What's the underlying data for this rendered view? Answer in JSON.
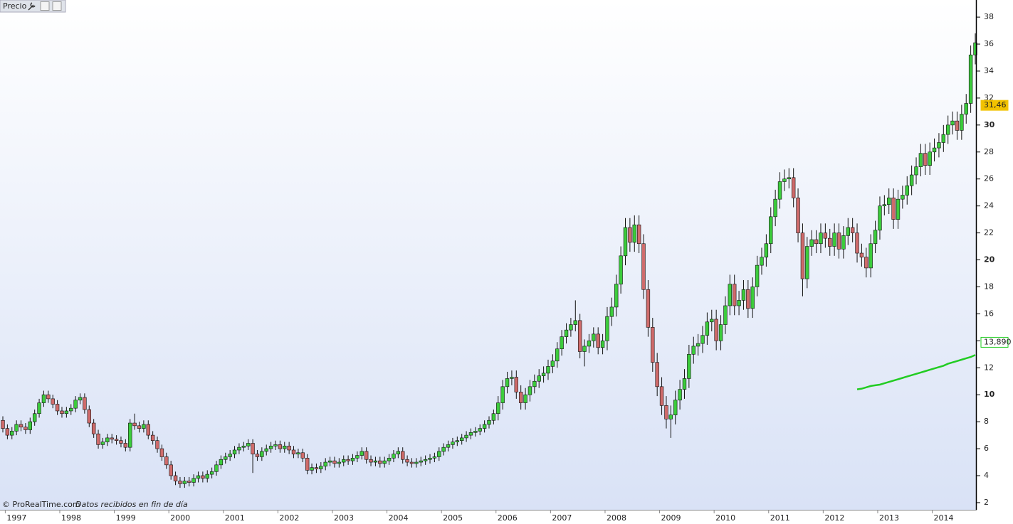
{
  "chart_data": {
    "type": "candlestick",
    "title": "Precio",
    "source": "© ProRealTime.com",
    "note": "Datos recibidos en fin de día",
    "up_color": "#3ccc3c",
    "down_color": "#cf6b6b",
    "ylim": [
      1.47,
      39.27
    ],
    "yticks": [
      2,
      4,
      6,
      8,
      10,
      12,
      14,
      16,
      18,
      20,
      22,
      24,
      26,
      28,
      30,
      32,
      34,
      36,
      38
    ],
    "categories": [
      null,
      "1997",
      null,
      null,
      null,
      null,
      null,
      null,
      null,
      null,
      null,
      null,
      null,
      "1998",
      null,
      null,
      null,
      null,
      null,
      null,
      null,
      null,
      null,
      null,
      null,
      "1999",
      null,
      null,
      null,
      null,
      null,
      null,
      null,
      null,
      null,
      null,
      null,
      "2000",
      null,
      null,
      null,
      null,
      null,
      null,
      null,
      null,
      null,
      null,
      null,
      "2001",
      null,
      null,
      null,
      null,
      null,
      null,
      null,
      null,
      null,
      null,
      null,
      "2002",
      null,
      null,
      null,
      null,
      null,
      null,
      null,
      null,
      null,
      null,
      null,
      "2003",
      null,
      null,
      null,
      null,
      null,
      null,
      null,
      null,
      null,
      null,
      null,
      "2004",
      null,
      null,
      null,
      null,
      null,
      null,
      null,
      null,
      null,
      null,
      null,
      "2005",
      null,
      null,
      null,
      null,
      null,
      null,
      null,
      null,
      null,
      null,
      null,
      "2006",
      null,
      null,
      null,
      null,
      null,
      null,
      null,
      null,
      null,
      null,
      null,
      "2007",
      null,
      null,
      null,
      null,
      null,
      null,
      null,
      null,
      null,
      null,
      null,
      "2008",
      null,
      null,
      null,
      null,
      null,
      null,
      null,
      null,
      null,
      null,
      null,
      "2009",
      null,
      null,
      null,
      null,
      null,
      null,
      null,
      null,
      null,
      null,
      null,
      "2010",
      null,
      null,
      null,
      null,
      null,
      null,
      null,
      null,
      null,
      null,
      null,
      "2011",
      null,
      null,
      null,
      null,
      null,
      null,
      null,
      null,
      null,
      null,
      null,
      "2012",
      null,
      null,
      null,
      null,
      null,
      null,
      null,
      null,
      null,
      null,
      null,
      "2013",
      null,
      null,
      null,
      null,
      null,
      null,
      null,
      null,
      null,
      null,
      null,
      "2014",
      null,
      null,
      null,
      null,
      null,
      null,
      null,
      null,
      null
    ],
    "open": [
      8.1,
      7.5,
      7.0,
      7.3,
      7.8,
      7.6,
      7.4,
      8.0,
      8.6,
      9.4,
      10.0,
      9.7,
      9.3,
      8.8,
      8.6,
      8.8,
      9.0,
      9.6,
      9.8,
      8.9,
      7.9,
      7.1,
      6.3,
      6.5,
      6.8,
      6.7,
      6.6,
      6.4,
      6.1,
      7.9,
      7.7,
      7.5,
      7.8,
      7.0,
      6.6,
      6.0,
      5.4,
      4.8,
      4.0,
      3.6,
      3.4,
      3.6,
      3.5,
      3.8,
      4.0,
      3.8,
      4.1,
      4.3,
      4.8,
      5.2,
      5.4,
      5.6,
      5.9,
      6.1,
      6.2,
      6.4,
      5.6,
      5.4,
      5.8,
      6.0,
      6.2,
      6.3,
      6.0,
      6.2,
      5.9,
      5.6,
      5.7,
      5.3,
      4.4,
      4.6,
      4.5,
      4.7,
      5.0,
      5.1,
      4.9,
      5.0,
      5.2,
      5.1,
      5.3,
      5.5,
      5.8,
      5.2,
      5.0,
      5.1,
      4.9,
      5.1,
      5.3,
      5.6,
      5.8,
      5.2,
      5.0,
      4.9,
      5.0,
      5.1,
      5.2,
      5.3,
      5.4,
      5.8,
      6.1,
      6.3,
      6.5,
      6.6,
      6.8,
      7.0,
      7.2,
      7.3,
      7.5,
      7.8,
      8.1,
      8.6,
      9.4,
      10.6,
      11.2,
      11.3,
      10.2,
      9.4,
      10.0,
      10.6,
      11.0,
      11.4,
      11.6,
      12.1,
      12.5,
      13.4,
      14.3,
      14.8,
      15.2,
      15.5,
      13.2,
      13.6,
      14.0,
      14.5,
      13.5,
      14.0,
      15.8,
      16.5,
      18.2,
      20.3,
      22.4,
      21.3,
      22.6,
      21.2,
      17.8,
      15.0,
      12.4,
      10.6,
      9.2,
      8.2,
      8.5,
      9.6,
      10.4,
      11.2,
      13.0,
      13.6,
      13.8,
      14.4,
      15.4,
      15.6,
      14.0,
      15.2,
      16.6,
      18.2,
      16.6,
      17.0,
      17.8,
      16.4,
      18.0,
      19.6,
      20.2,
      21.2,
      23.2,
      24.5,
      25.8,
      26.0,
      26.1,
      24.6,
      22.0,
      18.6,
      21.0,
      21.5,
      21.2,
      22.0,
      21.6,
      21.0,
      22.0,
      20.8,
      21.8,
      22.4,
      22.0,
      20.5,
      20.2,
      19.4,
      21.2,
      22.2,
      24.0,
      24.1,
      24.6,
      23.0,
      24.5,
      24.8,
      25.5,
      26.3,
      26.9,
      27.9,
      27.0,
      28.0,
      28.3,
      28.7,
      29.3,
      30.0,
      30.3,
      29.6,
      30.8,
      31.6,
      35.2
    ],
    "high": [
      8.4,
      7.8,
      7.6,
      8.1,
      8.1,
      7.9,
      8.3,
      8.9,
      9.7,
      10.3,
      10.3,
      10.0,
      9.6,
      9.1,
      9.1,
      9.3,
      9.9,
      10.1,
      10.1,
      9.2,
      8.2,
      7.4,
      6.8,
      7.1,
      7.1,
      7.0,
      6.9,
      6.7,
      8.2,
      8.6,
      8.0,
      8.1,
      8.1,
      7.3,
      6.9,
      6.3,
      5.7,
      5.1,
      4.3,
      3.9,
      3.9,
      3.9,
      4.1,
      4.3,
      4.3,
      4.4,
      4.6,
      5.1,
      5.5,
      5.7,
      5.9,
      6.2,
      6.4,
      6.5,
      6.7,
      6.7,
      5.9,
      6.1,
      6.3,
      6.5,
      6.6,
      6.6,
      6.5,
      6.5,
      6.2,
      6.0,
      6.0,
      5.6,
      4.9,
      4.9,
      5.0,
      5.3,
      5.4,
      5.4,
      5.3,
      5.5,
      5.5,
      5.6,
      5.8,
      6.1,
      6.1,
      5.5,
      5.4,
      5.4,
      5.4,
      5.6,
      5.9,
      6.1,
      6.1,
      5.5,
      5.3,
      5.3,
      5.4,
      5.5,
      5.6,
      5.7,
      6.1,
      6.4,
      6.6,
      6.8,
      6.9,
      7.1,
      7.3,
      7.5,
      7.6,
      7.8,
      8.1,
      8.4,
      8.9,
      9.9,
      11.1,
      11.7,
      11.8,
      11.8,
      10.7,
      10.5,
      11.1,
      11.5,
      11.9,
      12.1,
      12.6,
      13.0,
      13.9,
      14.8,
      15.3,
      15.7,
      17.0,
      16.0,
      14.1,
      14.5,
      15.0,
      15.0,
      14.5,
      16.5,
      17.2,
      18.9,
      21.0,
      23.1,
      23.1,
      23.3,
      23.3,
      21.9,
      18.5,
      15.7,
      13.1,
      11.3,
      9.9,
      9.2,
      10.3,
      11.1,
      11.9,
      13.7,
      14.3,
      14.5,
      15.1,
      16.1,
      16.3,
      16.3,
      15.9,
      17.3,
      18.9,
      18.9,
      17.7,
      18.5,
      18.5,
      18.7,
      20.3,
      20.9,
      21.9,
      23.9,
      25.2,
      26.5,
      26.7,
      26.8,
      26.8,
      25.3,
      22.7,
      21.7,
      22.2,
      22.2,
      22.7,
      22.7,
      22.3,
      22.7,
      22.7,
      22.5,
      23.1,
      23.1,
      22.7,
      21.2,
      20.9,
      21.9,
      22.9,
      24.7,
      24.8,
      25.3,
      25.3,
      25.2,
      25.5,
      26.2,
      27.0,
      27.6,
      28.6,
      28.6,
      28.7,
      29.0,
      29.4,
      30.0,
      30.7,
      31.0,
      31.0,
      31.5,
      32.3,
      35.9,
      36.8
    ],
    "low": [
      7.2,
      6.7,
      6.7,
      7.0,
      7.3,
      7.1,
      7.1,
      7.7,
      8.3,
      9.1,
      9.4,
      9.0,
      8.5,
      8.3,
      8.3,
      8.5,
      8.7,
      9.3,
      8.6,
      7.6,
      6.8,
      6.0,
      6.0,
      6.2,
      6.4,
      6.3,
      6.1,
      5.8,
      5.8,
      7.4,
      7.2,
      7.2,
      6.7,
      6.3,
      5.7,
      5.1,
      4.5,
      3.7,
      3.3,
      3.1,
      3.1,
      3.2,
      3.2,
      3.5,
      3.5,
      3.5,
      3.8,
      4.0,
      4.5,
      4.9,
      5.1,
      5.3,
      5.6,
      5.8,
      5.9,
      4.2,
      5.1,
      5.1,
      5.5,
      5.7,
      5.9,
      5.7,
      5.7,
      5.6,
      5.3,
      5.3,
      5.0,
      4.1,
      4.1,
      4.2,
      4.2,
      4.4,
      4.7,
      4.6,
      4.6,
      4.7,
      4.8,
      4.8,
      5.0,
      5.2,
      4.9,
      4.7,
      4.7,
      4.6,
      4.6,
      4.8,
      5.0,
      5.3,
      4.9,
      4.7,
      4.6,
      4.6,
      4.7,
      4.8,
      4.9,
      5.0,
      5.1,
      5.5,
      5.8,
      6.0,
      6.2,
      6.3,
      6.5,
      6.7,
      6.9,
      7.0,
      7.2,
      7.5,
      7.8,
      8.1,
      8.9,
      10.1,
      10.7,
      9.7,
      8.9,
      8.9,
      9.5,
      10.1,
      10.5,
      10.9,
      11.1,
      11.6,
      12.0,
      12.9,
      13.8,
      14.3,
      14.7,
      12.7,
      12.1,
      13.1,
      13.5,
      13.0,
      13.0,
      13.3,
      15.1,
      15.8,
      17.5,
      19.6,
      20.6,
      20.6,
      20.5,
      17.1,
      14.3,
      11.7,
      9.9,
      8.5,
      7.5,
      6.8,
      7.8,
      8.9,
      9.7,
      10.5,
      12.3,
      12.9,
      13.1,
      13.7,
      14.7,
      13.3,
      13.3,
      14.5,
      15.9,
      15.9,
      15.9,
      16.3,
      15.7,
      15.7,
      17.3,
      18.9,
      19.5,
      20.5,
      22.5,
      23.8,
      25.1,
      25.3,
      23.9,
      21.3,
      17.3,
      17.9,
      20.3,
      20.5,
      20.5,
      20.9,
      20.3,
      20.3,
      20.1,
      20.1,
      21.1,
      21.3,
      19.8,
      19.5,
      18.7,
      18.7,
      20.5,
      21.5,
      23.3,
      23.4,
      22.3,
      22.3,
      23.8,
      24.1,
      24.8,
      25.6,
      26.2,
      26.3,
      26.3,
      27.3,
      27.6,
      28.0,
      28.6,
      29.3,
      28.9,
      28.9,
      30.1,
      30.9,
      34.5
    ],
    "close": [
      7.5,
      7.0,
      7.3,
      7.8,
      7.6,
      7.4,
      8.0,
      8.6,
      9.4,
      10.0,
      9.7,
      9.3,
      8.8,
      8.6,
      8.8,
      9.0,
      9.6,
      9.8,
      8.9,
      7.9,
      7.1,
      6.3,
      6.5,
      6.8,
      6.7,
      6.6,
      6.4,
      6.1,
      7.9,
      7.7,
      7.5,
      7.8,
      7.0,
      6.6,
      6.0,
      5.4,
      4.8,
      4.0,
      3.6,
      3.4,
      3.6,
      3.5,
      3.8,
      4.0,
      3.8,
      4.1,
      4.3,
      4.8,
      5.2,
      5.4,
      5.6,
      5.9,
      6.1,
      6.2,
      6.4,
      5.6,
      5.4,
      5.8,
      6.0,
      6.2,
      6.3,
      6.0,
      6.2,
      5.9,
      5.6,
      5.7,
      5.3,
      4.4,
      4.6,
      4.5,
      4.7,
      5.0,
      5.1,
      4.9,
      5.0,
      5.2,
      5.1,
      5.3,
      5.5,
      5.8,
      5.2,
      5.0,
      5.1,
      4.9,
      5.1,
      5.3,
      5.6,
      5.8,
      5.2,
      5.0,
      4.9,
      5.0,
      5.1,
      5.2,
      5.3,
      5.4,
      5.8,
      6.1,
      6.3,
      6.5,
      6.6,
      6.8,
      7.0,
      7.2,
      7.3,
      7.5,
      7.8,
      8.1,
      8.6,
      9.4,
      10.6,
      11.2,
      11.3,
      10.2,
      9.4,
      10.0,
      10.6,
      11.0,
      11.4,
      11.6,
      12.1,
      12.5,
      13.4,
      14.3,
      14.8,
      15.2,
      15.5,
      13.2,
      13.6,
      14.0,
      14.5,
      13.5,
      14.0,
      15.8,
      16.5,
      18.2,
      20.3,
      22.4,
      21.3,
      22.6,
      21.2,
      17.8,
      15.0,
      12.4,
      10.6,
      9.2,
      8.2,
      8.5,
      9.6,
      10.4,
      11.2,
      13.0,
      13.6,
      13.8,
      14.4,
      15.4,
      15.6,
      14.0,
      15.2,
      16.6,
      18.2,
      16.6,
      17.0,
      17.8,
      16.4,
      18.0,
      19.6,
      20.2,
      21.2,
      23.2,
      24.5,
      25.8,
      26.0,
      26.1,
      24.6,
      22.0,
      18.6,
      21.0,
      21.5,
      21.2,
      22.0,
      21.6,
      21.0,
      22.0,
      20.8,
      21.8,
      22.4,
      22.0,
      20.5,
      20.2,
      19.4,
      21.2,
      22.2,
      24.0,
      24.1,
      24.6,
      23.0,
      24.5,
      24.8,
      25.5,
      26.3,
      26.9,
      27.9,
      27.0,
      28.0,
      28.3,
      28.7,
      29.3,
      30.0,
      30.3,
      29.6,
      30.8,
      31.6,
      35.2,
      36.1
    ],
    "line": {
      "color": "#22cc22",
      "values": [
        null,
        null,
        null,
        null,
        null,
        null,
        null,
        null,
        null,
        null,
        null,
        null,
        null,
        null,
        null,
        null,
        null,
        null,
        null,
        null,
        null,
        null,
        null,
        null,
        null,
        null,
        null,
        null,
        null,
        null,
        null,
        null,
        null,
        null,
        null,
        null,
        null,
        null,
        null,
        null,
        null,
        null,
        null,
        null,
        null,
        null,
        null,
        null,
        null,
        null,
        null,
        null,
        null,
        null,
        null,
        null,
        null,
        null,
        null,
        null,
        null,
        null,
        null,
        null,
        null,
        null,
        null,
        null,
        null,
        null,
        null,
        null,
        null,
        null,
        null,
        null,
        null,
        null,
        null,
        null,
        null,
        null,
        null,
        null,
        null,
        null,
        null,
        null,
        null,
        null,
        null,
        null,
        null,
        null,
        null,
        null,
        null,
        null,
        null,
        null,
        null,
        null,
        null,
        null,
        null,
        null,
        null,
        null,
        null,
        null,
        null,
        null,
        null,
        null,
        null,
        null,
        null,
        null,
        null,
        null,
        null,
        null,
        null,
        null,
        null,
        null,
        null,
        null,
        null,
        null,
        null,
        null,
        null,
        null,
        null,
        null,
        null,
        null,
        null,
        null,
        null,
        null,
        null,
        null,
        null,
        null,
        null,
        null,
        null,
        null,
        null,
        null,
        null,
        null,
        null,
        null,
        null,
        null,
        null,
        null,
        null,
        null,
        null,
        null,
        null,
        null,
        null,
        null,
        null,
        null,
        null,
        null,
        null,
        null,
        null,
        null,
        null,
        null,
        null,
        null,
        null,
        null,
        null,
        null,
        null,
        null,
        null,
        null,
        10.4,
        10.45,
        10.55,
        10.65,
        10.7,
        10.75,
        10.85,
        10.95,
        11.05,
        11.15,
        11.25,
        11.35,
        11.45,
        11.55,
        11.65,
        11.75,
        11.85,
        11.95,
        12.05,
        12.15,
        12.3,
        12.4,
        12.5,
        12.6,
        12.7,
        12.8,
        12.95
      ]
    },
    "price_labels": [
      {
        "value": 31.46,
        "label": "31,46",
        "color": "#f2c200"
      },
      {
        "value": 13.89,
        "label": "13,890",
        "color": "#22cc22"
      }
    ]
  }
}
